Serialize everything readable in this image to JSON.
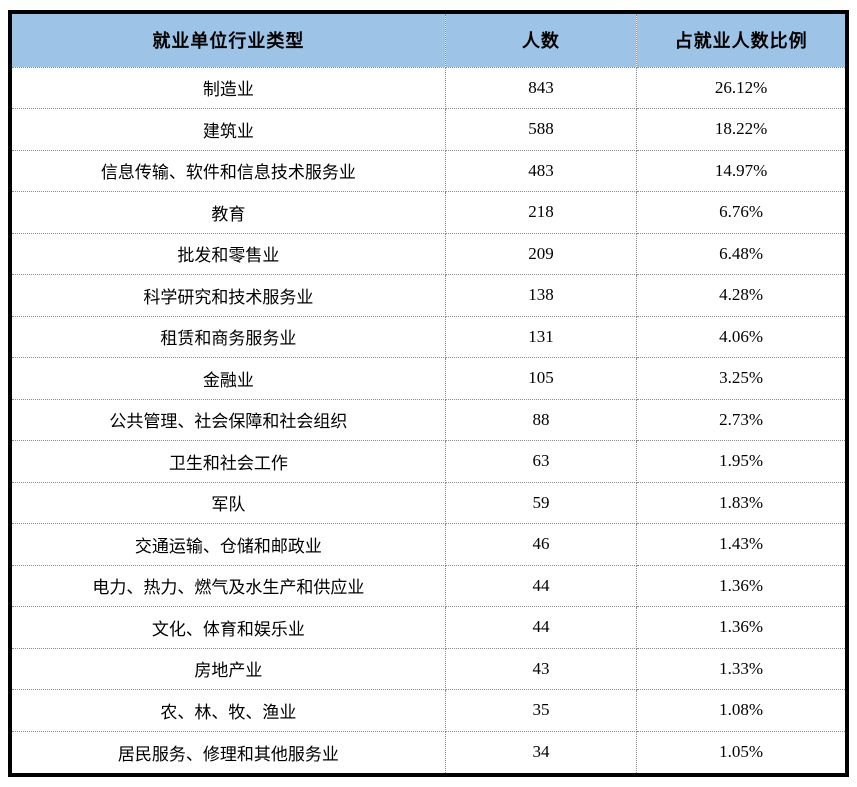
{
  "table": {
    "header": {
      "industry": "就业单位行业类型",
      "count": "人数",
      "ratio": "占就业人数比例"
    },
    "rows": [
      {
        "industry": "制造业",
        "count": "843",
        "ratio": "26.12%"
      },
      {
        "industry": "建筑业",
        "count": "588",
        "ratio": "18.22%"
      },
      {
        "industry": "信息传输、软件和信息技术服务业",
        "count": "483",
        "ratio": "14.97%"
      },
      {
        "industry": "教育",
        "count": "218",
        "ratio": "6.76%"
      },
      {
        "industry": "批发和零售业",
        "count": "209",
        "ratio": "6.48%"
      },
      {
        "industry": "科学研究和技术服务业",
        "count": "138",
        "ratio": "4.28%"
      },
      {
        "industry": "租赁和商务服务业",
        "count": "131",
        "ratio": "4.06%"
      },
      {
        "industry": "金融业",
        "count": "105",
        "ratio": "3.25%"
      },
      {
        "industry": "公共管理、社会保障和社会组织",
        "count": "88",
        "ratio": "2.73%"
      },
      {
        "industry": "卫生和社会工作",
        "count": "63",
        "ratio": "1.95%"
      },
      {
        "industry": "军队",
        "count": "59",
        "ratio": "1.83%"
      },
      {
        "industry": "交通运输、仓储和邮政业",
        "count": "46",
        "ratio": "1.43%"
      },
      {
        "industry": "电力、热力、燃气及水生产和供应业",
        "count": "44",
        "ratio": "1.36%"
      },
      {
        "industry": "文化、体育和娱乐业",
        "count": "44",
        "ratio": "1.36%"
      },
      {
        "industry": "房地产业",
        "count": "43",
        "ratio": "1.33%"
      },
      {
        "industry": "农、林、牧、渔业",
        "count": "35",
        "ratio": "1.08%"
      },
      {
        "industry": "居民服务、修理和其他服务业",
        "count": "34",
        "ratio": "1.05%"
      }
    ],
    "colors": {
      "header_bg": "#9dc3e6",
      "outer_border": "#000000",
      "grid_dotted": "#8c8c8c",
      "text": "#000000",
      "page_bg": "#ffffff"
    }
  }
}
